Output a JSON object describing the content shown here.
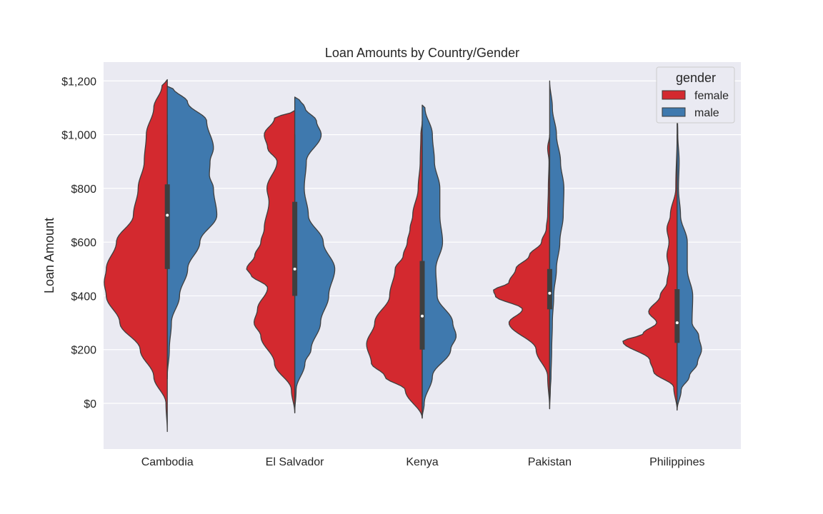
{
  "chart_data": {
    "type": "violin",
    "title": "Loan Amounts by Country/Gender",
    "xlabel": "",
    "ylabel": "Loan Amount",
    "ylim": [
      -170,
      1270
    ],
    "yticks": [
      0,
      200,
      400,
      600,
      800,
      1000,
      1200
    ],
    "ytick_labels": [
      "$0",
      "$200",
      "$400",
      "$600",
      "$800",
      "$1,000",
      "$1,200"
    ],
    "categories": [
      "Cambodia",
      "El Salvador",
      "Kenya",
      "Pakistan",
      "Philippines"
    ],
    "grid": true,
    "split": true,
    "legend": {
      "title": "gender",
      "placement": "top-right",
      "entries": [
        {
          "label": "female",
          "color": "#d3292f"
        },
        {
          "label": "male",
          "color": "#3f79ae"
        }
      ]
    },
    "series": [
      {
        "name": "female",
        "color": "#d3292f",
        "violins": [
          {
            "ext": [
              -105,
              1205
            ],
            "profile": [
              [
                -105,
                0
              ],
              [
                0,
                0.02
              ],
              [
                100,
                0.2
              ],
              [
                200,
                0.4
              ],
              [
                300,
                0.7
              ],
              [
                400,
                0.9
              ],
              [
                450,
                0.93
              ],
              [
                500,
                0.9
              ],
              [
                600,
                0.75
              ],
              [
                700,
                0.5
              ],
              [
                800,
                0.43
              ],
              [
                900,
                0.34
              ],
              [
                1000,
                0.31
              ],
              [
                1100,
                0.2
              ],
              [
                1180,
                0.08
              ],
              [
                1205,
                0
              ]
            ]
          },
          {
            "ext": [
              -35,
              1090
            ],
            "profile": [
              [
                -35,
                0
              ],
              [
                50,
                0.05
              ],
              [
                150,
                0.3
              ],
              [
                250,
                0.5
              ],
              [
                300,
                0.6
              ],
              [
                350,
                0.55
              ],
              [
                430,
                0.4
              ],
              [
                480,
                0.65
              ],
              [
                500,
                0.71
              ],
              [
                550,
                0.59
              ],
              [
                600,
                0.5
              ],
              [
                650,
                0.45
              ],
              [
                750,
                0.38
              ],
              [
                800,
                0.41
              ],
              [
                900,
                0.26
              ],
              [
                950,
                0.4
              ],
              [
                1000,
                0.45
              ],
              [
                1060,
                0.3
              ],
              [
                1090,
                0
              ]
            ]
          },
          {
            "ext": [
              -55,
              1050
            ],
            "profile": [
              [
                -55,
                0
              ],
              [
                50,
                0.25
              ],
              [
                100,
                0.55
              ],
              [
                150,
                0.75
              ],
              [
                220,
                0.82
              ],
              [
                300,
                0.7
              ],
              [
                400,
                0.48
              ],
              [
                500,
                0.4
              ],
              [
                550,
                0.28
              ],
              [
                600,
                0.22
              ],
              [
                650,
                0.18
              ],
              [
                700,
                0.14
              ],
              [
                800,
                0.06
              ],
              [
                900,
                0.03
              ],
              [
                1000,
                0.02
              ],
              [
                1050,
                0
              ]
            ]
          },
          {
            "ext": [
              -20,
              1000
            ],
            "profile": [
              [
                -20,
                0
              ],
              [
                100,
                0.03
              ],
              [
                200,
                0.2
              ],
              [
                300,
                0.6
              ],
              [
                350,
                0.4
              ],
              [
                400,
                0.8
              ],
              [
                420,
                0.83
              ],
              [
                450,
                0.6
              ],
              [
                500,
                0.5
              ],
              [
                550,
                0.3
              ],
              [
                600,
                0.12
              ],
              [
                650,
                0.05
              ],
              [
                700,
                0.03
              ],
              [
                800,
                0.02
              ],
              [
                900,
                0.01
              ],
              [
                950,
                0.03
              ],
              [
                1000,
                0
              ]
            ]
          },
          {
            "ext": [
              -25,
              1000
            ],
            "profile": [
              [
                -25,
                0
              ],
              [
                60,
                0.05
              ],
              [
                120,
                0.35
              ],
              [
                160,
                0.4
              ],
              [
                230,
                0.8
              ],
              [
                260,
                0.5
              ],
              [
                300,
                0.3
              ],
              [
                340,
                0.42
              ],
              [
                400,
                0.25
              ],
              [
                450,
                0.15
              ],
              [
                500,
                0.12
              ],
              [
                550,
                0.15
              ],
              [
                600,
                0.12
              ],
              [
                650,
                0.15
              ],
              [
                700,
                0.1
              ],
              [
                800,
                0.02
              ],
              [
                1000,
                0
              ]
            ]
          }
        ]
      },
      {
        "name": "male",
        "color": "#3f79ae",
        "violins": [
          {
            "ext": [
              100,
              1180
            ],
            "profile": [
              [
                100,
                0
              ],
              [
                200,
                0.03
              ],
              [
                300,
                0.06
              ],
              [
                400,
                0.18
              ],
              [
                500,
                0.3
              ],
              [
                600,
                0.48
              ],
              [
                700,
                0.73
              ],
              [
                800,
                0.68
              ],
              [
                850,
                0.62
              ],
              [
                900,
                0.63
              ],
              [
                950,
                0.68
              ],
              [
                1050,
                0.58
              ],
              [
                1120,
                0.3
              ],
              [
                1175,
                0.08
              ],
              [
                1180,
                0
              ]
            ]
          },
          {
            "ext": [
              -35,
              1140
            ],
            "profile": [
              [
                -35,
                0
              ],
              [
                50,
                0.02
              ],
              [
                150,
                0.15
              ],
              [
                200,
                0.24
              ],
              [
                300,
                0.38
              ],
              [
                400,
                0.5
              ],
              [
                500,
                0.59
              ],
              [
                600,
                0.42
              ],
              [
                700,
                0.2
              ],
              [
                800,
                0.14
              ],
              [
                900,
                0.17
              ],
              [
                1000,
                0.39
              ],
              [
                1050,
                0.32
              ],
              [
                1100,
                0.15
              ],
              [
                1135,
                0.06
              ],
              [
                1140,
                0
              ]
            ]
          },
          {
            "ext": [
              -55,
              1110
            ],
            "profile": [
              [
                -55,
                0
              ],
              [
                0,
                0.03
              ],
              [
                100,
                0.15
              ],
              [
                200,
                0.42
              ],
              [
                250,
                0.5
              ],
              [
                300,
                0.45
              ],
              [
                400,
                0.22
              ],
              [
                500,
                0.2
              ],
              [
                600,
                0.3
              ],
              [
                700,
                0.26
              ],
              [
                800,
                0.26
              ],
              [
                900,
                0.18
              ],
              [
                1000,
                0.15
              ],
              [
                1100,
                0.04
              ],
              [
                1110,
                0
              ]
            ]
          },
          {
            "ext": [
              -20,
              1200
            ],
            "profile": [
              [
                -20,
                0
              ],
              [
                50,
                0.01
              ],
              [
                100,
                0.02
              ],
              [
                200,
                0.03
              ],
              [
                300,
                0.04
              ],
              [
                400,
                0.06
              ],
              [
                500,
                0.1
              ],
              [
                600,
                0.15
              ],
              [
                700,
                0.2
              ],
              [
                800,
                0.21
              ],
              [
                900,
                0.16
              ],
              [
                1000,
                0.1
              ],
              [
                1100,
                0.04
              ],
              [
                1200,
                0
              ]
            ]
          },
          {
            "ext": [
              -25,
              1110
            ],
            "profile": [
              [
                -25,
                0
              ],
              [
                50,
                0.06
              ],
              [
                100,
                0.18
              ],
              [
                150,
                0.3
              ],
              [
                200,
                0.36
              ],
              [
                250,
                0.32
              ],
              [
                300,
                0.22
              ],
              [
                400,
                0.23
              ],
              [
                500,
                0.15
              ],
              [
                600,
                0.15
              ],
              [
                700,
                0.05
              ],
              [
                800,
                0.02
              ],
              [
                900,
                0.03
              ],
              [
                1000,
                0.01
              ],
              [
                1110,
                0
              ]
            ]
          }
        ]
      }
    ],
    "inner_box": [
      {
        "q1": 500,
        "q3": 815,
        "median": 700,
        "wlow": 90,
        "whigh": 1000
      },
      {
        "q1": 400,
        "q3": 750,
        "median": 500,
        "wlow": 20,
        "whigh": 1000
      },
      {
        "q1": 200,
        "q3": 530,
        "median": 325,
        "wlow": 25,
        "whigh": 1000
      },
      {
        "q1": 350,
        "q3": 500,
        "median": 410,
        "wlow": 45,
        "whigh": 800
      },
      {
        "q1": 225,
        "q3": 425,
        "median": 300,
        "wlow": 100,
        "whigh": 720
      }
    ]
  }
}
